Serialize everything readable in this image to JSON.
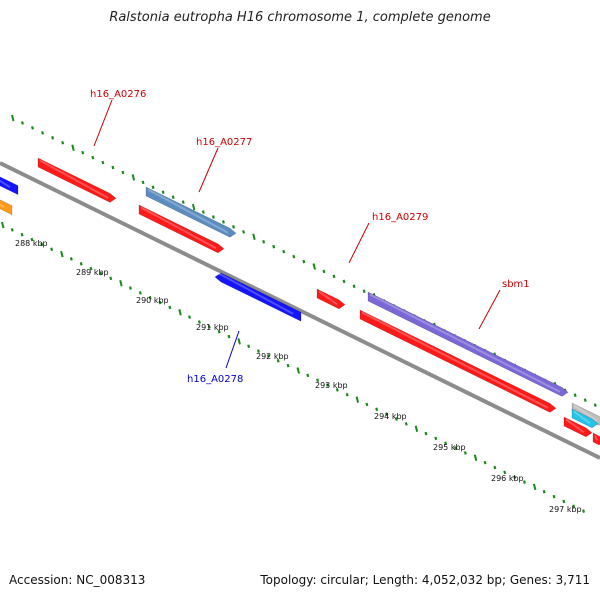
{
  "title": "Ralstonia eutropha H16 chromosome 1, complete genome",
  "footer": {
    "accession": "Accession: NC_008313",
    "summary": "Topology: circular; Length: 4,052,032 bp; Genes: 3,711"
  },
  "colors": {
    "backbone": "#8c8c8c",
    "tick": "#1a8a1a",
    "forward_red": "#ff1a1a",
    "reverse_blue": "#1414ff",
    "steel_blue": "#5b8dc0",
    "purple": "#7b68d6",
    "orange": "#ff9a1a",
    "cyan": "#22c4e8",
    "gray_gene": "#bdbdbd",
    "label_red": "#cc0000",
    "label_blue": "#0000cc"
  },
  "tick_labels": [
    "288 kbp",
    "289 kbp",
    "290 kbp",
    "291 kbp",
    "292 kbp",
    "293 kbp",
    "294 kbp",
    "295 kbp",
    "296 kbp",
    "297 kbp"
  ],
  "gene_labels": [
    {
      "name": "h16_A0276",
      "color": "label_red"
    },
    {
      "name": "h16_A0277",
      "color": "label_red"
    },
    {
      "name": "h16_A0279",
      "color": "label_red"
    },
    {
      "name": "sbm1",
      "color": "label_red"
    },
    {
      "name": "h16_A0278",
      "color": "label_blue"
    }
  ]
}
